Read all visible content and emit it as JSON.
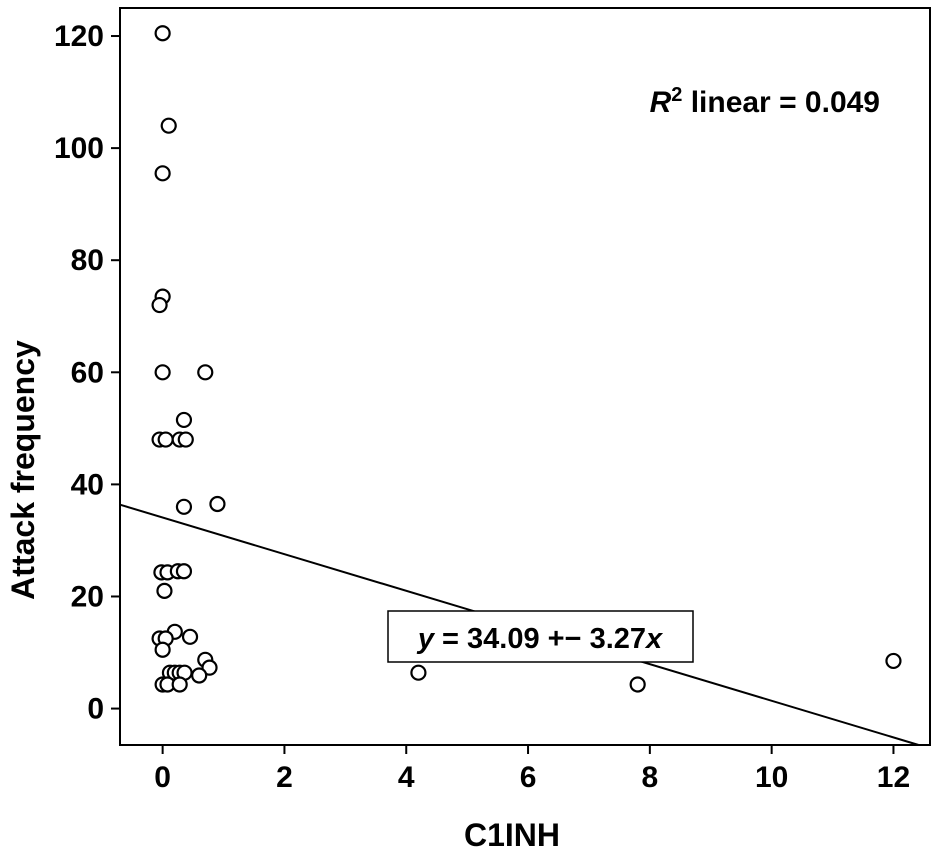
{
  "figure": {
    "background": "#ffffff",
    "ink_color": "#000000"
  },
  "chart_data": {
    "type": "scatter",
    "title": "",
    "xlabel": "C1INH",
    "ylabel": "Attack frequency",
    "xlim": [
      -0.7,
      12.6
    ],
    "ylim": [
      -6.5,
      125
    ],
    "x_ticks": [
      0,
      2,
      4,
      6,
      8,
      10,
      12
    ],
    "y_ticks": [
      0,
      20,
      40,
      60,
      80,
      100,
      120
    ],
    "grid": false,
    "frame": "full-box",
    "marker": "open-circle",
    "legend": "none",
    "points": [
      [
        0,
        120.5
      ],
      [
        0.1,
        104
      ],
      [
        0,
        95.5
      ],
      [
        0,
        73.5
      ],
      [
        -0.05,
        72
      ],
      [
        0,
        60
      ],
      [
        0.7,
        60
      ],
      [
        0.35,
        51.5
      ],
      [
        -0.05,
        48
      ],
      [
        0.05,
        48
      ],
      [
        0.28,
        48
      ],
      [
        0.38,
        48
      ],
      [
        0.35,
        36
      ],
      [
        0.9,
        36.5
      ],
      [
        -0.02,
        24.3
      ],
      [
        0.08,
        24.3
      ],
      [
        0.25,
        24.5
      ],
      [
        0.35,
        24.5
      ],
      [
        0.03,
        21
      ],
      [
        0.2,
        13.7
      ],
      [
        -0.05,
        12.5
      ],
      [
        0.05,
        12.5
      ],
      [
        0.45,
        12.8
      ],
      [
        0,
        10.5
      ],
      [
        0.7,
        8.7
      ],
      [
        0.77,
        7.3
      ],
      [
        0.12,
        6.4
      ],
      [
        0.2,
        6.4
      ],
      [
        0.28,
        6.4
      ],
      [
        0.36,
        6.4
      ],
      [
        0.6,
        5.9
      ],
      [
        0,
        4.3
      ],
      [
        0.08,
        4.3
      ],
      [
        0.28,
        4.3
      ],
      [
        4.2,
        6.4
      ],
      [
        7.8,
        4.3
      ],
      [
        12,
        8.5
      ]
    ],
    "regression": {
      "slope": -3.27,
      "intercept": 34.09,
      "equation": {
        "lhs": "y",
        "mid": " = 34.09 +− 3.27",
        "rhs": "x"
      }
    },
    "r2_annotation": {
      "symbol": "R",
      "exponent": "2",
      "rest": " linear = 0.049",
      "value": 0.049
    }
  }
}
